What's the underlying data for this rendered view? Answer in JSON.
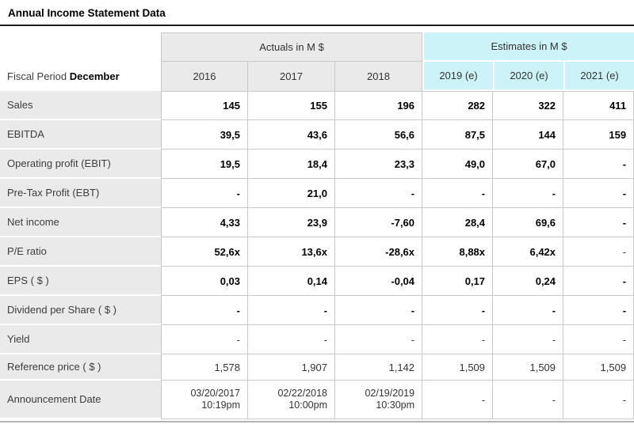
{
  "title": "Annual Income Statement Data",
  "colors": {
    "estimates_header_bg": "#ccf3f7",
    "actuals_header_bg": "#eaeaea",
    "row_label_bg": "#eaeaea",
    "cell_border": "#c9c9c9",
    "title_rule": "#1c1c1c",
    "bottom_rule": "#b3b3b3"
  },
  "table": {
    "fiscal_period_label": "Fiscal Period",
    "fiscal_period_value": "December",
    "groups": [
      {
        "label": "Actuals in M $",
        "span": 3
      },
      {
        "label": "Estimates in M $",
        "span": 3
      }
    ],
    "columns": [
      {
        "label": "2016",
        "group": "actuals"
      },
      {
        "label": "2017",
        "group": "actuals"
      },
      {
        "label": "2018",
        "group": "actuals"
      },
      {
        "label": "2019 (e)",
        "group": "estimates"
      },
      {
        "label": "2020 (e)",
        "group": "estimates"
      },
      {
        "label": "2021 (e)",
        "group": "estimates"
      }
    ],
    "rows": [
      {
        "label": "Sales",
        "values": [
          "145",
          "155",
          "196",
          "282",
          "322",
          "411"
        ],
        "bold": [
          true,
          true,
          true,
          true,
          true,
          true
        ],
        "size": "normal"
      },
      {
        "label": "EBITDA",
        "values": [
          "39,5",
          "43,6",
          "56,6",
          "87,5",
          "144",
          "159"
        ],
        "bold": [
          true,
          true,
          true,
          true,
          true,
          true
        ],
        "size": "normal"
      },
      {
        "label": "Operating profit (EBIT)",
        "values": [
          "19,5",
          "18,4",
          "23,3",
          "49,0",
          "67,0",
          "-"
        ],
        "bold": [
          true,
          true,
          true,
          true,
          true,
          true
        ],
        "size": "normal"
      },
      {
        "label": "Pre-Tax Profit (EBT)",
        "values": [
          "-",
          "21,0",
          "-",
          "-",
          "-",
          "-"
        ],
        "bold": [
          true,
          true,
          true,
          true,
          true,
          true
        ],
        "size": "normal"
      },
      {
        "label": "Net income",
        "values": [
          "4,33",
          "23,9",
          "-7,60",
          "28,4",
          "69,6",
          "-"
        ],
        "bold": [
          true,
          true,
          true,
          true,
          true,
          true
        ],
        "size": "normal"
      },
      {
        "label": "P/E ratio",
        "values": [
          "52,6x",
          "13,6x",
          "-28,6x",
          "8,88x",
          "6,42x",
          "-"
        ],
        "bold": [
          true,
          true,
          true,
          true,
          true,
          false
        ],
        "size": "normal"
      },
      {
        "label": "EPS ( $ )",
        "values": [
          "0,03",
          "0,14",
          "-0,04",
          "0,17",
          "0,24",
          "-"
        ],
        "bold": [
          true,
          true,
          true,
          true,
          true,
          true
        ],
        "size": "normal"
      },
      {
        "label": "Dividend per Share ( $ )",
        "values": [
          "-",
          "-",
          "-",
          "-",
          "-",
          "-"
        ],
        "bold": [
          true,
          true,
          true,
          true,
          true,
          true
        ],
        "size": "normal"
      },
      {
        "label": "Yield",
        "values": [
          "-",
          "-",
          "-",
          "-",
          "-",
          "-"
        ],
        "bold": [
          false,
          false,
          false,
          false,
          false,
          false
        ],
        "size": "normal"
      },
      {
        "label": "Reference price ( $ )",
        "values": [
          "1,578",
          "1,907",
          "1,142",
          "1,509",
          "1,509",
          "1,509"
        ],
        "bold": [
          false,
          false,
          false,
          false,
          false,
          false
        ],
        "size": "short"
      },
      {
        "label": "Announcement Date",
        "values": [
          "03/20/2017\n10:19pm",
          "02/22/2018\n10:00pm",
          "02/19/2019\n10:30pm",
          "-",
          "-",
          "-"
        ],
        "bold": [
          false,
          false,
          false,
          false,
          false,
          false
        ],
        "size": "tall"
      }
    ]
  }
}
